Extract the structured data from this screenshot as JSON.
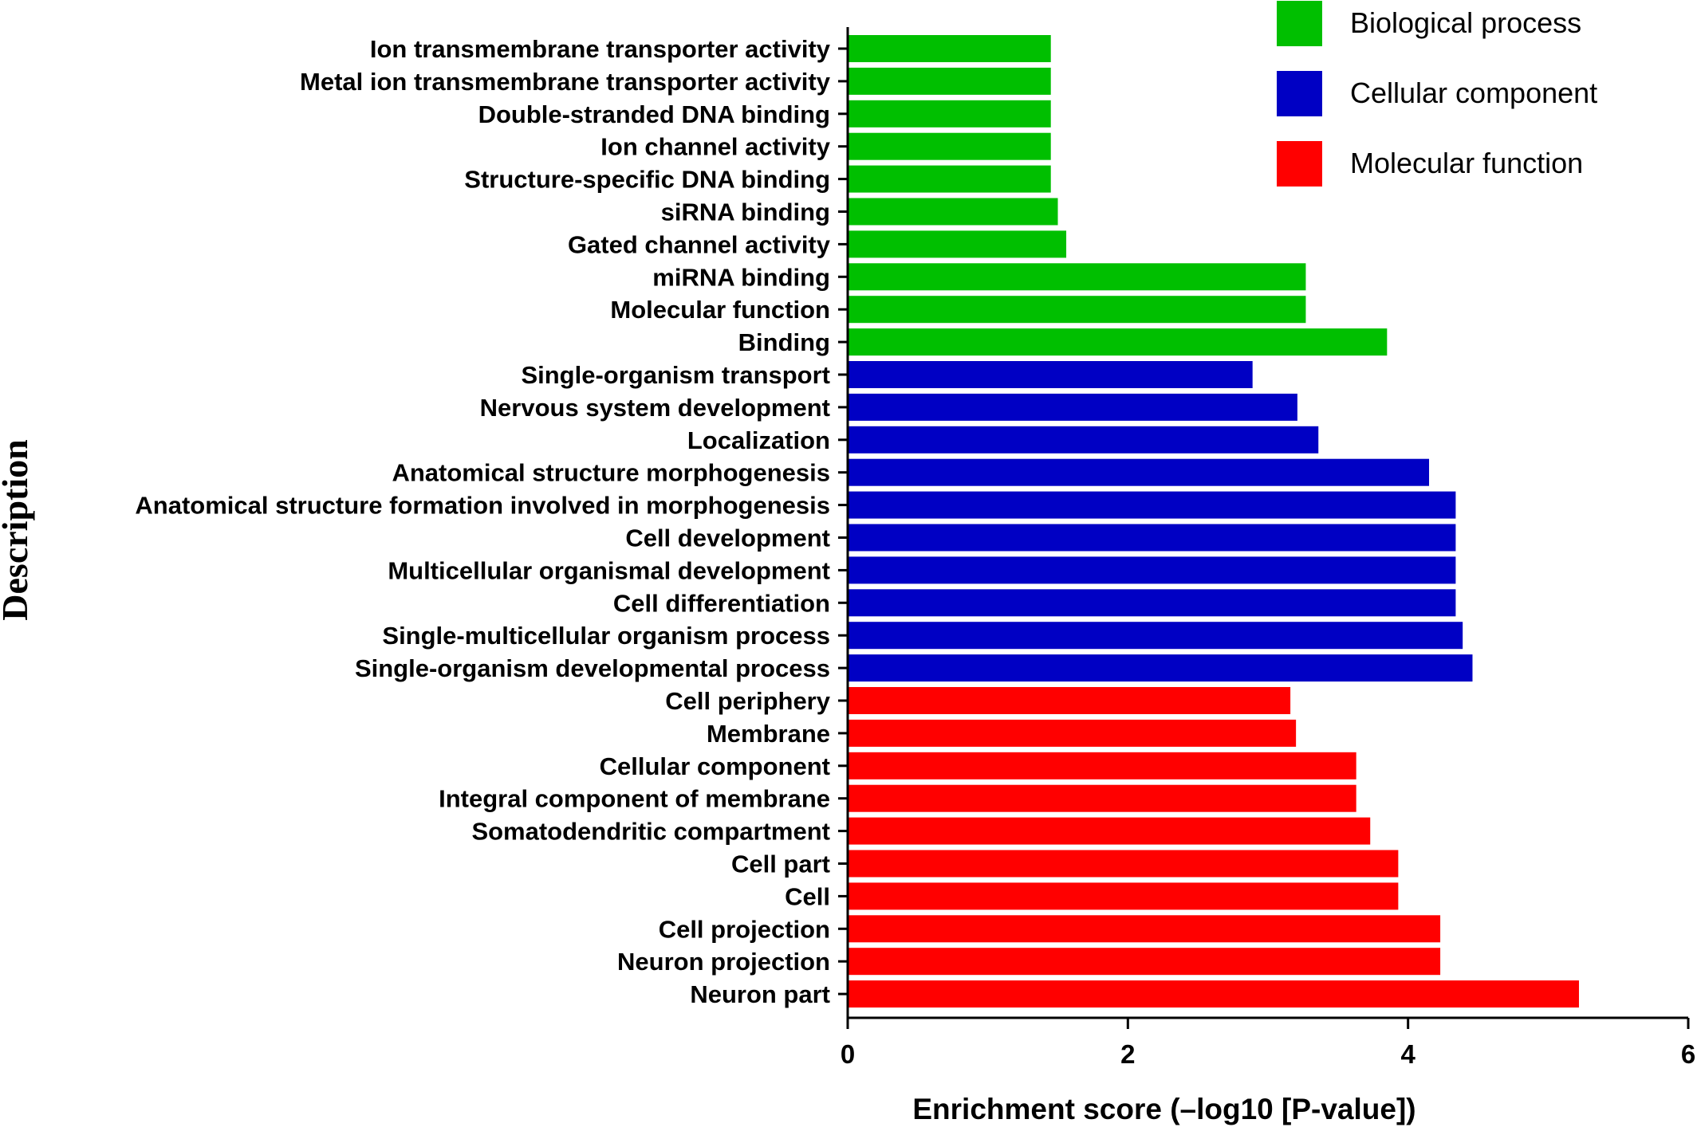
{
  "chart_data": {
    "type": "bar",
    "orientation": "horizontal",
    "title": "",
    "xlabel": "Enrichment score (–log10 [P-value])",
    "ylabel": "Description",
    "xlim": [
      0,
      6
    ],
    "xticks": [
      "0",
      "2",
      "4",
      "6"
    ],
    "grid": false,
    "legend_position": "top-right",
    "legend": [
      {
        "name": "Biological process",
        "color": "#00bf00"
      },
      {
        "name": "Cellular component",
        "color": "#0000c4"
      },
      {
        "name": "Molecular function",
        "color": "#ff0000"
      }
    ],
    "categories": [
      "Ion transmembrane transporter activity",
      "Metal ion transmembrane transporter activity",
      "Double-stranded DNA binding",
      "Ion channel activity",
      "Structure-specific DNA binding",
      "siRNA binding",
      "Gated channel activity",
      "miRNA binding",
      "Molecular function",
      "Binding",
      "Single-organism transport",
      "Nervous system development",
      "Localization",
      "Anatomical structure morphogenesis",
      "Anatomical structure formation involved in morphogenesis",
      "Cell development",
      "Multicellular organismal development",
      "Cell differentiation",
      "Single-multicellular organism process",
      "Single-organism developmental process",
      "Cell periphery",
      "Membrane",
      "Cellular component",
      "Integral component of membrane",
      "Somatodendritic compartment",
      "Cell part",
      "Cell",
      "Cell projection",
      "Neuron projection",
      "Neuron part"
    ],
    "values": [
      1.45,
      1.45,
      1.45,
      1.45,
      1.45,
      1.5,
      1.56,
      3.27,
      3.27,
      3.85,
      2.89,
      3.21,
      3.36,
      4.15,
      4.34,
      4.34,
      4.34,
      4.34,
      4.39,
      4.46,
      3.16,
      3.2,
      3.63,
      3.63,
      3.73,
      3.93,
      3.93,
      4.23,
      4.23,
      5.22
    ],
    "bar_groups": [
      0,
      0,
      0,
      0,
      0,
      0,
      0,
      0,
      0,
      0,
      1,
      1,
      1,
      1,
      1,
      1,
      1,
      1,
      1,
      1,
      2,
      2,
      2,
      2,
      2,
      2,
      2,
      2,
      2,
      2
    ]
  }
}
